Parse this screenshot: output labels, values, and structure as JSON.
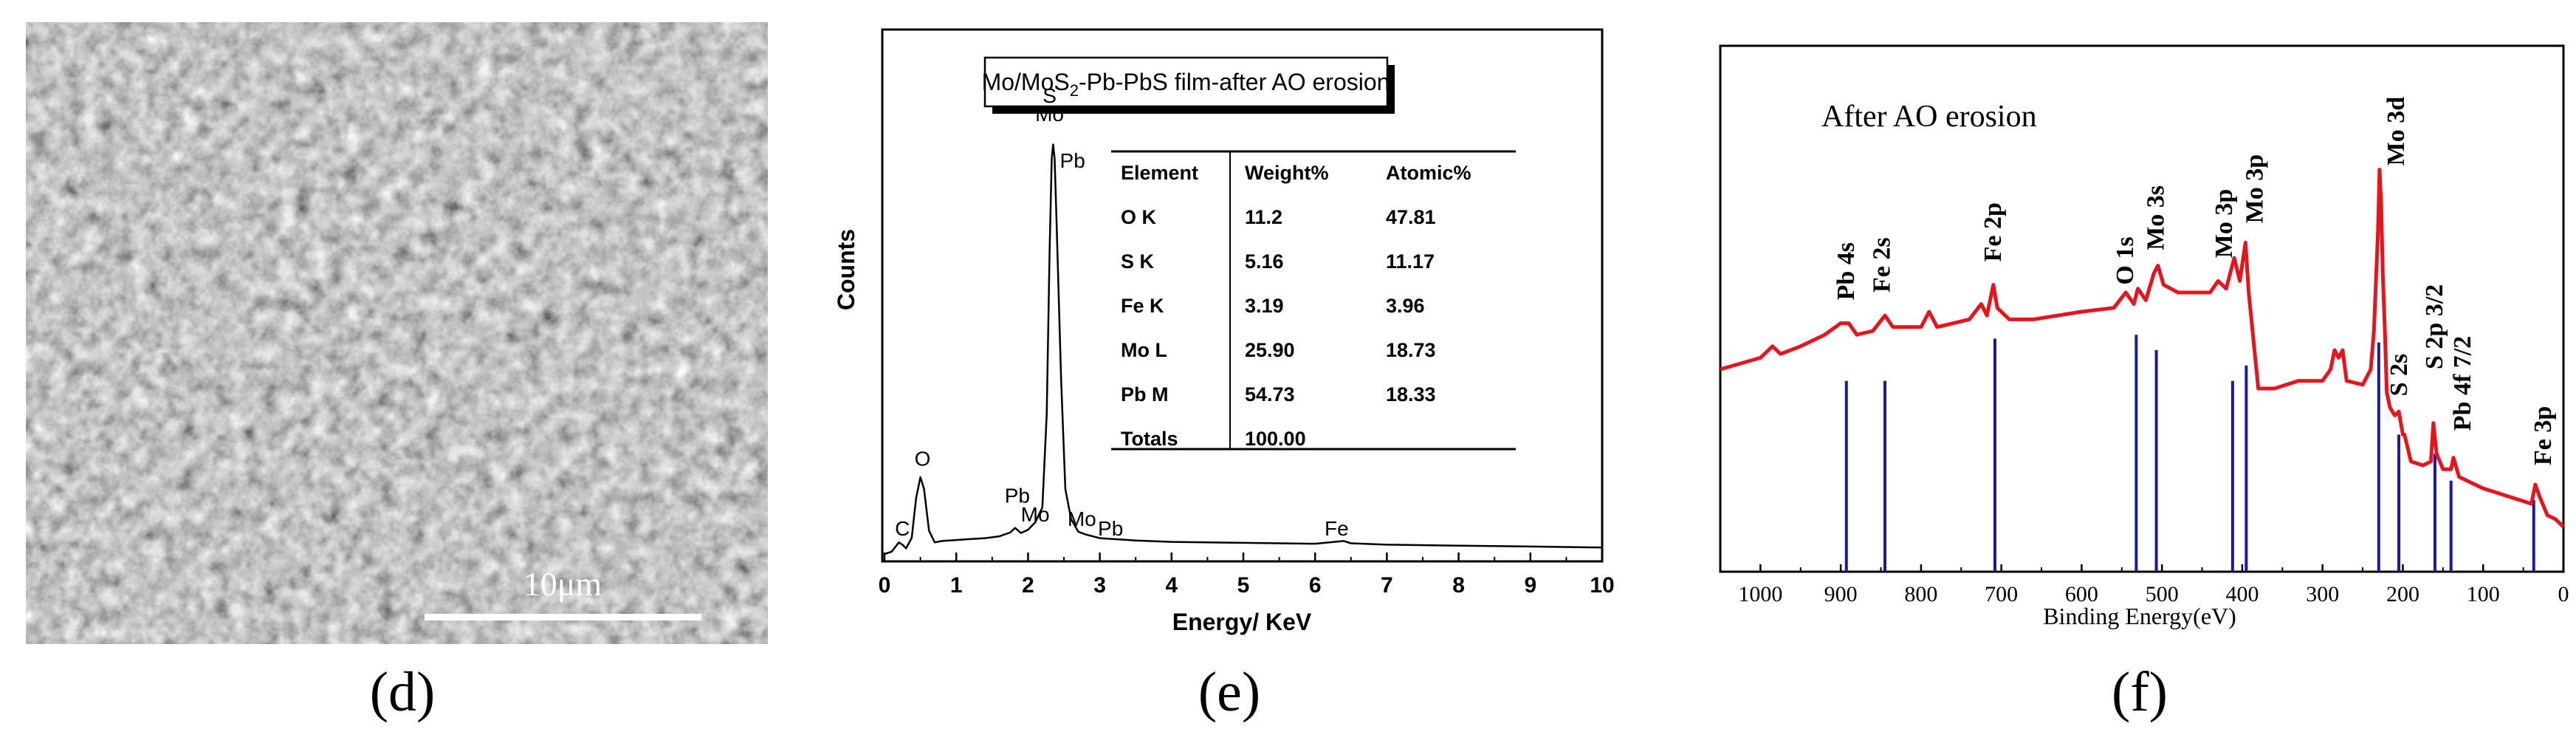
{
  "panel_labels": [
    "(d)",
    "(e)",
    "(f)"
  ],
  "sem": {
    "scale_label": "10μm"
  },
  "chart_data": [
    {
      "type": "line",
      "panel": "e",
      "title": "Mo/MoS2-Pb-PbS film-after AO erosion",
      "title_parts": {
        "pre": "Mo/MoS",
        "sub": "2",
        "post": "-Pb-PbS film-after AO erosion"
      },
      "xlabel": "Energy/ KeV",
      "ylabel": "Counts",
      "xlim": [
        0,
        10
      ],
      "ylim": [
        0,
        100
      ],
      "xticks": [
        "0",
        "1",
        "2",
        "3",
        "4",
        "5",
        "6",
        "7",
        "8",
        "9",
        "10"
      ],
      "spectrum": [
        [
          0,
          0
        ],
        [
          0.1,
          0.5
        ],
        [
          0.2,
          2.5
        ],
        [
          0.25,
          2
        ],
        [
          0.3,
          1.2
        ],
        [
          0.38,
          3.5
        ],
        [
          0.44,
          12
        ],
        [
          0.5,
          16.5
        ],
        [
          0.55,
          14
        ],
        [
          0.62,
          5
        ],
        [
          0.7,
          2.5
        ],
        [
          0.8,
          2.8
        ],
        [
          1.0,
          3.0
        ],
        [
          1.2,
          3.2
        ],
        [
          1.4,
          3.4
        ],
        [
          1.6,
          3.8
        ],
        [
          1.75,
          4.6
        ],
        [
          1.82,
          5.6
        ],
        [
          1.9,
          4.5
        ],
        [
          2.0,
          5.2
        ],
        [
          2.1,
          6.8
        ],
        [
          2.2,
          10
        ],
        [
          2.26,
          30
        ],
        [
          2.3,
          65
        ],
        [
          2.33,
          85
        ],
        [
          2.35,
          88
        ],
        [
          2.37,
          85
        ],
        [
          2.4,
          70
        ],
        [
          2.46,
          38
        ],
        [
          2.52,
          14
        ],
        [
          2.6,
          7.5
        ],
        [
          2.7,
          4.8
        ],
        [
          2.8,
          4.2
        ],
        [
          3.0,
          3.4
        ],
        [
          3.5,
          2.9
        ],
        [
          4.0,
          2.6
        ],
        [
          5.0,
          2.4
        ],
        [
          6.0,
          2.2
        ],
        [
          6.4,
          2.8
        ],
        [
          6.5,
          2.3
        ],
        [
          7.0,
          2.0
        ],
        [
          8.0,
          1.8
        ],
        [
          9.0,
          1.6
        ],
        [
          10,
          1.4
        ]
      ],
      "peak_labels": [
        {
          "text": "C",
          "x": 0.25,
          "y": 4
        },
        {
          "text": "O",
          "x": 0.53,
          "y": 19
        },
        {
          "text": "Pb",
          "x": 1.85,
          "y": 11
        },
        {
          "text": "Mo",
          "x": 2.1,
          "y": 7
        },
        {
          "text": "S",
          "x": 2.3,
          "y": 97
        },
        {
          "text": "Mo",
          "x": 2.3,
          "y": 93
        },
        {
          "text": "Pb",
          "x": 2.62,
          "y": 83
        },
        {
          "text": "Mo",
          "x": 2.75,
          "y": 6
        },
        {
          "text": "Pb",
          "x": 3.15,
          "y": 4
        },
        {
          "text": "Fe",
          "x": 6.3,
          "y": 4
        }
      ],
      "table": {
        "headers": [
          "Element",
          "Weight%",
          "Atomic%"
        ],
        "rows": [
          [
            "O K",
            "11.2",
            "47.81"
          ],
          [
            "S K",
            "5.16",
            "11.17"
          ],
          [
            "Fe K",
            "3.19",
            "3.96"
          ],
          [
            "Mo L",
            "25.90",
            "18.73"
          ],
          [
            "Pb M",
            "54.73",
            "18.33"
          ],
          [
            "Totals",
            "100.00",
            ""
          ]
        ]
      }
    },
    {
      "type": "line",
      "panel": "f",
      "title": "After AO erosion",
      "xlabel": "Binding Energy(eV)",
      "ylabel": "",
      "xlim": [
        1050,
        0
      ],
      "ylim": [
        0,
        100
      ],
      "xticks": [
        "1000",
        "900",
        "800",
        "700",
        "600",
        "500",
        "400",
        "300",
        "200",
        "100",
        "0"
      ],
      "colors": {
        "spectrum": "#e8141c",
        "reference": "#1a1a9e"
      },
      "spectrum": [
        [
          1050,
          50
        ],
        [
          1000,
          53
        ],
        [
          985,
          56
        ],
        [
          975,
          54
        ],
        [
          950,
          56
        ],
        [
          920,
          59
        ],
        [
          900,
          62
        ],
        [
          890,
          62
        ],
        [
          880,
          59
        ],
        [
          860,
          60
        ],
        [
          845,
          64
        ],
        [
          835,
          61
        ],
        [
          800,
          61
        ],
        [
          790,
          65
        ],
        [
          780,
          61
        ],
        [
          740,
          63
        ],
        [
          725,
          67
        ],
        [
          718,
          64
        ],
        [
          710,
          72
        ],
        [
          705,
          66
        ],
        [
          690,
          63
        ],
        [
          660,
          63
        ],
        [
          630,
          64
        ],
        [
          600,
          65
        ],
        [
          560,
          66
        ],
        [
          545,
          70
        ],
        [
          535,
          67
        ],
        [
          530,
          71
        ],
        [
          520,
          68
        ],
        [
          510,
          75
        ],
        [
          505,
          77
        ],
        [
          498,
          72
        ],
        [
          480,
          70
        ],
        [
          440,
          70
        ],
        [
          430,
          73
        ],
        [
          420,
          71
        ],
        [
          410,
          79
        ],
        [
          403,
          73
        ],
        [
          396,
          83
        ],
        [
          392,
          70
        ],
        [
          380,
          45
        ],
        [
          360,
          45
        ],
        [
          330,
          47
        ],
        [
          300,
          47
        ],
        [
          290,
          50
        ],
        [
          285,
          55
        ],
        [
          280,
          53
        ],
        [
          275,
          55
        ],
        [
          270,
          47
        ],
        [
          250,
          46
        ],
        [
          240,
          50
        ],
        [
          236,
          60
        ],
        [
          231,
          86
        ],
        [
          229,
          102
        ],
        [
          227,
          93
        ],
        [
          225,
          75
        ],
        [
          222,
          58
        ],
        [
          220,
          44
        ],
        [
          216,
          40
        ],
        [
          210,
          38
        ],
        [
          205,
          39
        ],
        [
          200,
          33
        ],
        [
          198,
          33
        ],
        [
          190,
          26
        ],
        [
          175,
          25
        ],
        [
          165,
          26
        ],
        [
          162,
          36
        ],
        [
          158,
          28
        ],
        [
          150,
          24
        ],
        [
          140,
          24
        ],
        [
          137,
          27
        ],
        [
          130,
          22
        ],
        [
          100,
          19
        ],
        [
          85,
          18
        ],
        [
          70,
          17
        ],
        [
          55,
          16
        ],
        [
          40,
          15
        ],
        [
          35,
          20
        ],
        [
          30,
          17
        ],
        [
          20,
          12
        ],
        [
          10,
          11
        ],
        [
          0,
          9
        ]
      ],
      "references": [
        [
          893,
          47
        ],
        [
          845,
          47
        ],
        [
          708,
          58
        ],
        [
          532,
          59
        ],
        [
          507,
          55
        ],
        [
          412,
          47
        ],
        [
          395,
          51
        ],
        [
          230,
          57
        ],
        [
          205,
          33
        ],
        [
          160,
          28
        ],
        [
          140,
          21
        ],
        [
          37,
          16
        ]
      ],
      "annotations": [
        {
          "text": "Pb 4s",
          "x": 893,
          "y": 68
        },
        {
          "text": "Fe 2s",
          "x": 848,
          "y": 70
        },
        {
          "text": "Fe 2p",
          "x": 710,
          "y": 78
        },
        {
          "text": "O 1s",
          "x": 545,
          "y": 72
        },
        {
          "text": "Mo 3s",
          "x": 507,
          "y": 81
        },
        {
          "text": "Mo 3p",
          "x": 422,
          "y": 79
        },
        {
          "text": "Mo 3p",
          "x": 384,
          "y": 88
        },
        {
          "text": "Mo 3d",
          "x": 208,
          "y": 103
        },
        {
          "text": "S 2s",
          "x": 204,
          "y": 43
        },
        {
          "text": "S 2p 3/2",
          "x": 160,
          "y": 50
        },
        {
          "text": "Pb 4f 7/2",
          "x": 125,
          "y": 34
        },
        {
          "text": "Fe 3p",
          "x": 25,
          "y": 25
        }
      ]
    }
  ]
}
